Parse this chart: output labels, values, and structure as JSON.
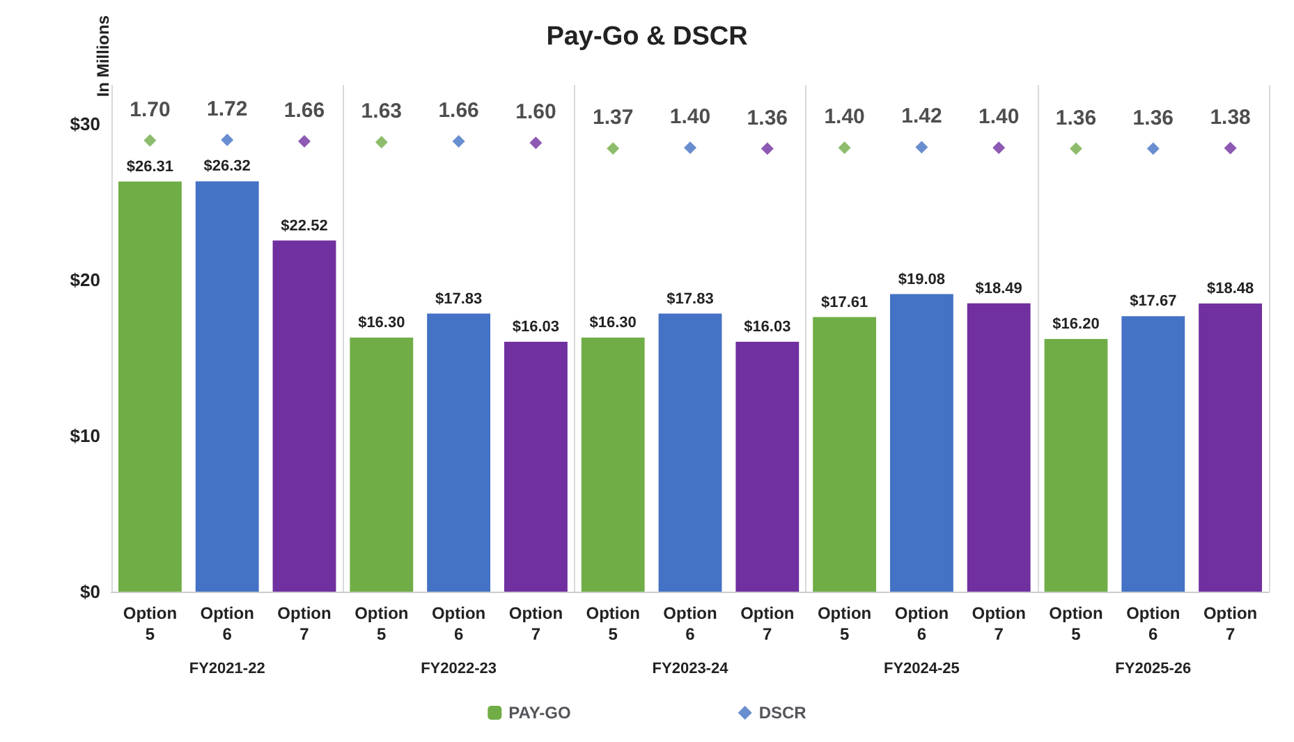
{
  "chart_data": {
    "type": "bar",
    "title": "Pay-Go & DSCR",
    "ylabel": "In Millions",
    "categories": [
      "Option 5",
      "Option 6",
      "Option 7",
      "Option 5",
      "Option 6",
      "Option 7",
      "Option 5",
      "Option 6",
      "Option 7",
      "Option 5",
      "Option 6",
      "Option 7",
      "Option 5",
      "Option 6",
      "Option 7"
    ],
    "annotations": [
      "FY2021-22",
      "FY2022-23",
      "FY2023-24",
      "FY2024-25",
      "FY2025-26"
    ],
    "series": [
      {
        "name": "PAY-GO",
        "color": "#70ad47",
        "colors": [
          "#70ad47",
          "#4472c4",
          "#7030a0",
          "#70ad47",
          "#4472c4",
          "#7030a0",
          "#70ad47",
          "#4472c4",
          "#7030a0",
          "#70ad47",
          "#4472c4",
          "#7030a0",
          "#70ad47",
          "#4472c4",
          "#7030a0"
        ],
        "values": [
          26.31,
          26.32,
          22.52,
          16.3,
          17.83,
          16.03,
          16.3,
          17.83,
          16.03,
          17.61,
          19.08,
          18.49,
          16.2,
          17.67,
          18.48
        ],
        "value_labels": [
          "$26.31",
          "$26.32",
          "$22.52",
          "$16.30",
          "$17.83",
          "$16.03",
          "$16.30",
          "$17.83",
          "$16.03",
          "$17.61",
          "$19.08",
          "$18.49",
          "$16.20",
          "$17.67",
          "$18.48"
        ]
      },
      {
        "name": "DSCR",
        "type": "scatter",
        "axis": "y2",
        "marker": "diamond",
        "color": "#4472c4",
        "colors": [
          "#70ad47",
          "#4472c4",
          "#7030a0",
          "#70ad47",
          "#4472c4",
          "#7030a0",
          "#70ad47",
          "#4472c4",
          "#7030a0",
          "#70ad47",
          "#4472c4",
          "#7030a0",
          "#70ad47",
          "#4472c4",
          "#7030a0"
        ],
        "values": [
          1.7,
          1.72,
          1.66,
          1.63,
          1.66,
          1.6,
          1.37,
          1.4,
          1.36,
          1.4,
          1.42,
          1.4,
          1.36,
          1.36,
          1.38
        ],
        "value_labels": [
          "1.70",
          "1.72",
          "1.66",
          "1.63",
          "1.66",
          "1.60",
          "1.37",
          "1.40",
          "1.36",
          "1.40",
          "1.42",
          "1.40",
          "1.36",
          "1.36",
          "1.38"
        ]
      }
    ],
    "ylim": [
      0,
      32.5
    ],
    "yticks": [
      {
        "value": 0,
        "label": "$0"
      },
      {
        "value": 10,
        "label": "$10"
      },
      {
        "value": 20,
        "label": "$20"
      },
      {
        "value": 30,
        "label": "$30"
      }
    ],
    "y2lim": [
      -17,
      4
    ],
    "grid": false,
    "legend": "bottom"
  }
}
